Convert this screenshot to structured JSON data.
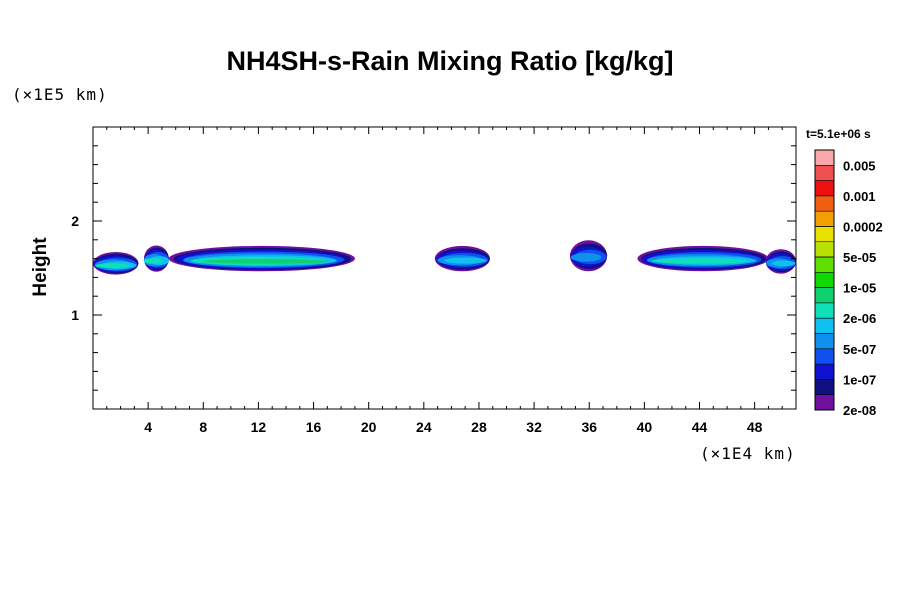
{
  "chart_data": {
    "type": "heatmap",
    "title": "NH4SH-s-Rain Mixing Ratio [kg/kg]",
    "xlabel": "",
    "ylabel": "Height",
    "x_unit": "(×1E4 km)",
    "y_unit": "(×1E5 km)",
    "xlim": [
      0,
      51
    ],
    "ylim": [
      0,
      3
    ],
    "x_ticks": [
      4,
      8,
      12,
      16,
      20,
      24,
      28,
      32,
      36,
      40,
      44,
      48
    ],
    "y_ticks": [
      1,
      2
    ],
    "time_label": "t=5.1e+06 s",
    "colorbar": {
      "labels": [
        "0.005",
        "0.001",
        "0.0002",
        "5e-05",
        "1e-05",
        "2e-06",
        "5e-07",
        "1e-07",
        "2e-08"
      ],
      "colors": [
        "#f8a8a8",
        "#f05050",
        "#ee1010",
        "#f06010",
        "#f0a000",
        "#e8e000",
        "#b8e000",
        "#60e000",
        "#10d800",
        "#10d070",
        "#10e0b8",
        "#10c0ee",
        "#1090ee",
        "#1050ee",
        "#1010d0",
        "#101080",
        "#7010a0"
      ]
    },
    "blobs": [
      {
        "x0": 0.0,
        "x1": 3.3,
        "yc": 1.55,
        "h": 0.24,
        "level": 6
      },
      {
        "x0": 3.7,
        "x1": 5.5,
        "yc": 1.6,
        "h": 0.28,
        "level": 6
      },
      {
        "x0": 5.5,
        "x1": 19.0,
        "yc": 1.6,
        "h": 0.27,
        "level": 7
      },
      {
        "x0": 24.8,
        "x1": 28.8,
        "yc": 1.6,
        "h": 0.27,
        "level": 5
      },
      {
        "x0": 34.6,
        "x1": 37.3,
        "yc": 1.63,
        "h": 0.33,
        "level": 4
      },
      {
        "x0": 39.5,
        "x1": 49.0,
        "yc": 1.6,
        "h": 0.27,
        "level": 6
      },
      {
        "x0": 48.8,
        "x1": 51.0,
        "yc": 1.57,
        "h": 0.26,
        "level": 5
      }
    ]
  }
}
